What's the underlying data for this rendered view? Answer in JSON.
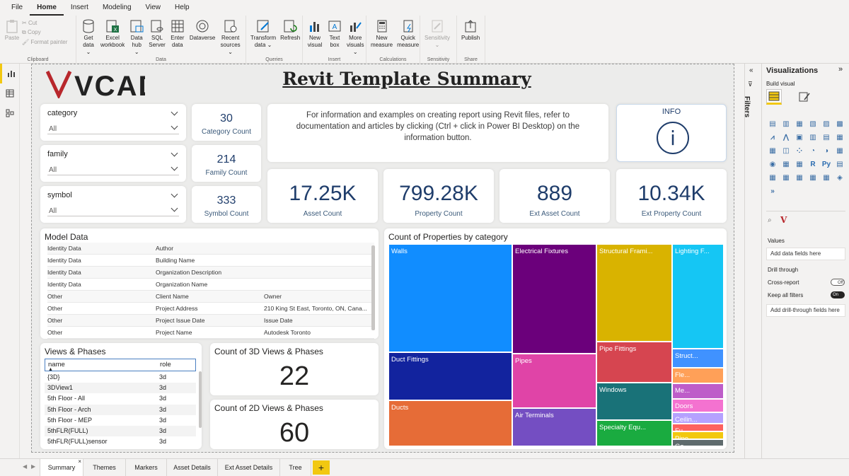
{
  "menu": {
    "tabs": [
      "File",
      "Home",
      "Insert",
      "Modeling",
      "View",
      "Help"
    ],
    "active": "Home"
  },
  "ribbon": {
    "clipboard": {
      "paste": "Paste",
      "cut": "Cut",
      "copy": "Copy",
      "format_painter": "Format painter",
      "label": "Clipboard"
    },
    "data": {
      "get_data": [
        "Get",
        "data ⌄"
      ],
      "excel": [
        "Excel",
        "workbook"
      ],
      "data_hub": [
        "Data",
        "hub ⌄"
      ],
      "sql": [
        "SQL",
        "Server"
      ],
      "enter": [
        "Enter",
        "data"
      ],
      "dataverse": [
        "Dataverse",
        ""
      ],
      "recent": [
        "Recent",
        "sources ⌄"
      ],
      "label": "Data"
    },
    "queries": {
      "transform": [
        "Transform",
        "data ⌄"
      ],
      "refresh": [
        "Refresh",
        ""
      ],
      "label": "Queries"
    },
    "insert": {
      "new_visual": [
        "New",
        "visual"
      ],
      "text_box": [
        "Text",
        "box"
      ],
      "more_visuals": [
        "More",
        "visuals ⌄"
      ],
      "label": "Insert"
    },
    "calculations": {
      "new_measure": [
        "New",
        "measure"
      ],
      "quick_measure": [
        "Quick",
        "measure"
      ],
      "label": "Calculations"
    },
    "sensitivity": {
      "btn": [
        "Sensitivity",
        "⌄"
      ],
      "label": "Sensitivity"
    },
    "share": {
      "publish": [
        "Publish",
        ""
      ],
      "label": "Share"
    }
  },
  "report": {
    "logo": "VCAD",
    "title": "Revit Template Summary",
    "slicers": [
      {
        "label": "category",
        "value": "All"
      },
      {
        "label": "family",
        "value": "All"
      },
      {
        "label": "symbol",
        "value": "All"
      }
    ],
    "counts": [
      {
        "value": "30",
        "label": "Category Count"
      },
      {
        "value": "214",
        "label": "Family Count"
      },
      {
        "value": "333",
        "label": "Symbol Count"
      }
    ],
    "info_text": "For information and examples on creating report using Revit files, refer to documentation and articles by clicking (Ctrl + click in Power BI Desktop) on the information button.",
    "info_button": {
      "label": "INFO",
      "glyph": "i"
    },
    "kpis": [
      {
        "value": "17.25K",
        "label": "Asset Count"
      },
      {
        "value": "799.28K",
        "label": "Property Count"
      },
      {
        "value": "889",
        "label": "Ext Asset Count"
      },
      {
        "value": "10.34K",
        "label": "Ext Property Count"
      }
    ],
    "model_data": {
      "title": "Model Data",
      "rows": [
        [
          "Identity Data",
          "Author",
          ""
        ],
        [
          "Identity Data",
          "Building Name",
          ""
        ],
        [
          "Identity Data",
          "Organization Description",
          ""
        ],
        [
          "Identity Data",
          "Organization Name",
          ""
        ],
        [
          "Other",
          "Client Name",
          "Owner"
        ],
        [
          "Other",
          "Project Address",
          "210 King St East, Toronto, ON, Cana..."
        ],
        [
          "Other",
          "Project Issue Date",
          "Issue Date"
        ],
        [
          "Other",
          "Project Name",
          "Autodesk Toronto"
        ]
      ]
    },
    "views_phases": {
      "title": "Views & Phases",
      "columns": [
        "name",
        "role"
      ],
      "rows": [
        [
          "{3D}",
          "3d"
        ],
        [
          "3DView1",
          "3d"
        ],
        [
          "5th Floor - All",
          "3d"
        ],
        [
          "5th Floor - Arch",
          "3d"
        ],
        [
          "5th Floor - MEP",
          "3d"
        ],
        [
          "5thFLR(FULL)",
          "3d"
        ],
        [
          "5thFLR(FULL)sensor",
          "3d"
        ]
      ]
    },
    "count3d": {
      "title": "Count of 3D Views & Phases",
      "value": "22"
    },
    "count2d": {
      "title": "Count of 2D Views & Phases",
      "value": "60"
    },
    "treemap_title": "Count of Properties by category"
  },
  "chart_data": {
    "type": "treemap",
    "title": "Count of Properties by category",
    "categories": [
      "Walls",
      "Duct Fittings",
      "Ducts",
      "Electrical Fixtures",
      "Pipes",
      "Air Terminals",
      "Structural Framing",
      "Pipe Fittings",
      "Windows",
      "Specialty Equipment",
      "Lighting Fixtures",
      "Structural Columns",
      "Fle...",
      "Me...",
      "Doors",
      "Ceilings",
      "Fu...",
      "Pipe ...",
      "Ge..."
    ],
    "labels": [
      "Walls",
      "Duct Fittings",
      "Ducts",
      "Electrical Fixtures",
      "Pipes",
      "Air Terminals",
      "Structural Frami...",
      "Pipe Fittings",
      "Windows",
      "Specialty Equ...",
      "Lighting F...",
      "Struct...",
      "Fle...",
      "Me...",
      "Doors",
      "Ceilin...",
      "Fu...",
      "Pipe ...",
      "Ge..."
    ],
    "values": [
      137,
      61,
      58,
      94,
      47,
      33,
      76,
      32,
      29,
      20,
      55,
      10,
      8,
      8,
      7,
      6,
      4,
      4,
      4
    ],
    "colors": [
      "#118dff",
      "#12239e",
      "#e66c37",
      "#6b007b",
      "#e044a7",
      "#744ec2",
      "#d9b300",
      "#d64550",
      "#197278",
      "#1aab40",
      "#15c6f4",
      "#4092ff",
      "#ffa058",
      "#be5dc9",
      "#f472d0",
      "#b5a1ff",
      "#fd625e",
      "#f2c80f",
      "#5f6b6d"
    ]
  },
  "viz_pane": {
    "title": "Visualizations",
    "build": "Build visual",
    "filters": "Filters",
    "values_label": "Values",
    "values_well": "Add data fields here",
    "drill_through": "Drill through",
    "cross_report": "Cross-report",
    "cross_report_state": "Off",
    "keep_all": "Keep all filters",
    "keep_all_state": "On",
    "drill_well": "Add drill-through fields here"
  },
  "page_tabs": [
    "Summary",
    "Themes",
    "Markers",
    "Asset Details",
    "Ext Asset Details",
    "Tree"
  ],
  "page_tab_add": "+",
  "colors": {
    "accent": "#f2c811",
    "kpi_text": "#1f3d6b",
    "logo_red": "#b8272c"
  }
}
